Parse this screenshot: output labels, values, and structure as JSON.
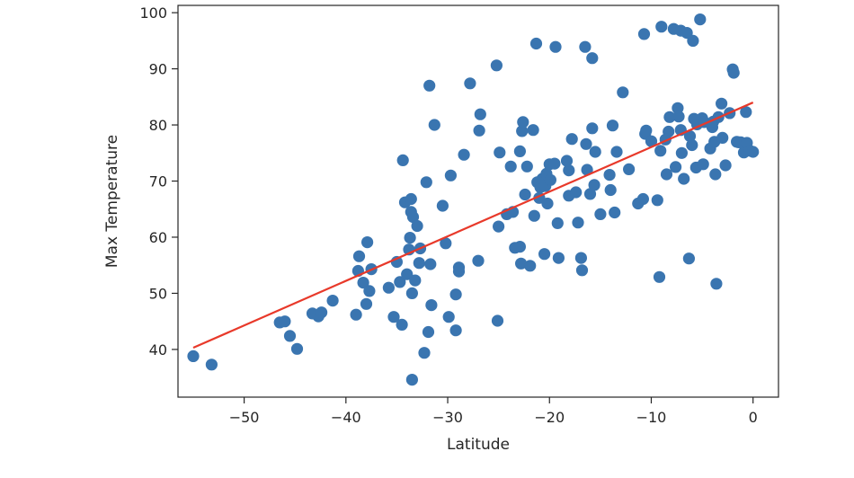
{
  "chart_data": {
    "type": "scatter",
    "title": "",
    "xlabel": "Latitude",
    "ylabel": "Max Temperature",
    "xlim": [
      -56.5,
      2.5
    ],
    "ylim": [
      31.5,
      101.3
    ],
    "xticks": [
      -50,
      -40,
      -30,
      -20,
      -10,
      0
    ],
    "xtick_labels": [
      "−50",
      "−40",
      "−30",
      "−20",
      "−10",
      "0"
    ],
    "yticks": [
      40,
      50,
      60,
      70,
      80,
      90,
      100
    ],
    "ytick_labels": [
      "40",
      "50",
      "60",
      "70",
      "80",
      "90",
      "100"
    ],
    "grid": false,
    "legend": false,
    "colors": {
      "points": "#3a75b0",
      "regression": "#e8392a",
      "axes": "#262626"
    },
    "series": [
      {
        "kind": "scatter",
        "points": [
          [
            -55,
            38.8
          ],
          [
            -53.2,
            37.3
          ],
          [
            -46.5,
            44.8
          ],
          [
            -46,
            45
          ],
          [
            -45.5,
            42.4
          ],
          [
            -44.8,
            40.1
          ],
          [
            -43.3,
            46.4
          ],
          [
            -42.7,
            45.9
          ],
          [
            -42.4,
            46.6
          ],
          [
            -41.3,
            48.7
          ],
          [
            -39,
            46.2
          ],
          [
            -38.8,
            54
          ],
          [
            -38.7,
            56.6
          ],
          [
            -38.3,
            51.9
          ],
          [
            -38,
            48.1
          ],
          [
            -37.9,
            59.1
          ],
          [
            -37.7,
            50.4
          ],
          [
            -37.5,
            54.3
          ],
          [
            -35.8,
            51
          ],
          [
            -35.3,
            45.8
          ],
          [
            -35,
            55.6
          ],
          [
            -34.7,
            52
          ],
          [
            -34.5,
            44.4
          ],
          [
            -34.4,
            73.7
          ],
          [
            -34.2,
            66.2
          ],
          [
            -34,
            53.4
          ],
          [
            -33.8,
            57.8
          ],
          [
            -33.7,
            59.9
          ],
          [
            -33.6,
            66.8
          ],
          [
            -33.6,
            64.5
          ],
          [
            -33.5,
            50
          ],
          [
            -33.4,
            63.6
          ],
          [
            -33.2,
            52.3
          ],
          [
            -33,
            62
          ],
          [
            -32.8,
            55.4
          ],
          [
            -32.7,
            58
          ],
          [
            -33.5,
            34.6
          ],
          [
            -32.3,
            39.4
          ],
          [
            -32.1,
            69.8
          ],
          [
            -31.9,
            43.1
          ],
          [
            -31.8,
            87
          ],
          [
            -31.7,
            55.2
          ],
          [
            -31.6,
            47.9
          ],
          [
            -31.3,
            80
          ],
          [
            -30.5,
            65.6
          ],
          [
            -30.2,
            58.9
          ],
          [
            -29.9,
            45.8
          ],
          [
            -29.7,
            71
          ],
          [
            -29.2,
            43.4
          ],
          [
            -29.2,
            49.8
          ],
          [
            -28.9,
            53.9
          ],
          [
            -28.9,
            54.6
          ],
          [
            -28.4,
            74.7
          ],
          [
            -27.8,
            87.4
          ],
          [
            -27,
            55.8
          ],
          [
            -26.9,
            79
          ],
          [
            -26.8,
            81.9
          ],
          [
            -25.2,
            90.6
          ],
          [
            -25.1,
            45.1
          ],
          [
            -25,
            61.9
          ],
          [
            -24.9,
            75.1
          ],
          [
            -24.2,
            64.1
          ],
          [
            -23.8,
            72.6
          ],
          [
            -23.6,
            64.5
          ],
          [
            -23.4,
            58.1
          ],
          [
            -22.9,
            58.3
          ],
          [
            -22.9,
            75.3
          ],
          [
            -22.8,
            55.3
          ],
          [
            -22.7,
            78.9
          ],
          [
            -22.6,
            80.5
          ],
          [
            -22.4,
            67.6
          ],
          [
            -22.2,
            72.6
          ],
          [
            -21.9,
            54.9
          ],
          [
            -21.6,
            79.1
          ],
          [
            -21.5,
            63.8
          ],
          [
            -21.3,
            94.5
          ],
          [
            -21.2,
            69.8
          ],
          [
            -21,
            67
          ],
          [
            -20.9,
            68.9
          ],
          [
            -20.7,
            70.4
          ],
          [
            -20.5,
            57
          ],
          [
            -20.4,
            69.1
          ],
          [
            -20.3,
            71.3
          ],
          [
            -20.2,
            66
          ],
          [
            -20,
            73
          ],
          [
            -19.9,
            70.2
          ],
          [
            -19.5,
            73.1
          ],
          [
            -19.4,
            93.9
          ],
          [
            -19.2,
            62.5
          ],
          [
            -19.1,
            56.3
          ],
          [
            -18.3,
            73.6
          ],
          [
            -18.1,
            71.9
          ],
          [
            -18.1,
            67.4
          ],
          [
            -17.8,
            77.5
          ],
          [
            -17.4,
            68
          ],
          [
            -17.2,
            62.6
          ],
          [
            -16.9,
            56.3
          ],
          [
            -16.8,
            54.1
          ],
          [
            -16.5,
            93.9
          ],
          [
            -16.4,
            76.6
          ],
          [
            -16.3,
            72
          ],
          [
            -16,
            67.7
          ],
          [
            -15.8,
            91.9
          ],
          [
            -15.8,
            79.4
          ],
          [
            -15.6,
            69.3
          ],
          [
            -15.5,
            75.2
          ],
          [
            -15,
            64.1
          ],
          [
            -14.1,
            71.1
          ],
          [
            -14,
            68.4
          ],
          [
            -13.8,
            79.9
          ],
          [
            -13.6,
            64.4
          ],
          [
            -13.4,
            75.2
          ],
          [
            -12.8,
            85.8
          ],
          [
            -12.2,
            72.1
          ],
          [
            -11.3,
            66
          ],
          [
            -10.8,
            66.8
          ],
          [
            -10.7,
            96.2
          ],
          [
            -10.6,
            78.4
          ],
          [
            -10.5,
            79
          ],
          [
            -10,
            77.1
          ],
          [
            -9.4,
            66.6
          ],
          [
            -9.2,
            52.9
          ],
          [
            -9.1,
            75.4
          ],
          [
            -9,
            97.5
          ],
          [
            -8.6,
            77.4
          ],
          [
            -8.5,
            71.2
          ],
          [
            -8.3,
            78.8
          ],
          [
            -8.2,
            81.4
          ],
          [
            -7.8,
            97.1
          ],
          [
            -7.6,
            72.5
          ],
          [
            -7.4,
            83
          ],
          [
            -7.3,
            81.5
          ],
          [
            -7.1,
            79.1
          ],
          [
            -7.1,
            96.8
          ],
          [
            -7,
            75
          ],
          [
            -6.8,
            70.4
          ],
          [
            -6.5,
            96.4
          ],
          [
            -6.3,
            56.2
          ],
          [
            -6.2,
            78
          ],
          [
            -6,
            76.4
          ],
          [
            -5.9,
            95
          ],
          [
            -5.8,
            81.1
          ],
          [
            -5.6,
            72.4
          ],
          [
            -5.5,
            80.1
          ],
          [
            -5.2,
            98.8
          ],
          [
            -5,
            81.2
          ],
          [
            -4.9,
            73
          ],
          [
            -4.8,
            80.5
          ],
          [
            -4.2,
            75.8
          ],
          [
            -4,
            79.6
          ],
          [
            -3.9,
            80.6
          ],
          [
            -3.8,
            77
          ],
          [
            -3.7,
            71.2
          ],
          [
            -3.6,
            51.7
          ],
          [
            -3.4,
            81.4
          ],
          [
            -3.1,
            83.8
          ],
          [
            -3,
            77.7
          ],
          [
            -2.7,
            72.8
          ],
          [
            -2.3,
            82.1
          ],
          [
            -2,
            89.9
          ],
          [
            -1.9,
            89.3
          ],
          [
            -1.6,
            77
          ],
          [
            -1.4,
            76.9
          ],
          [
            -1.2,
            76.9
          ],
          [
            -0.9,
            75.1
          ],
          [
            -0.7,
            82.3
          ],
          [
            -0.6,
            76.8
          ],
          [
            -0.3,
            75.4
          ],
          [
            0,
            75.2
          ]
        ]
      },
      {
        "kind": "line",
        "points": [
          [
            -55,
            40.3
          ],
          [
            0,
            84.0
          ]
        ]
      }
    ]
  }
}
